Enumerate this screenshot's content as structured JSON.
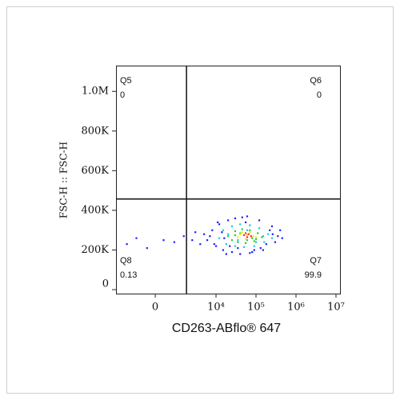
{
  "chart_data": {
    "type": "scatter",
    "xlabel": "CD263-ABflo® 647",
    "ylabel": "FSC-H :: FSC-H",
    "xscale": "biexponential",
    "xlim": [
      -2873,
      12600000
    ],
    "ylim": [
      -20000,
      1130000
    ],
    "xticks": [
      0,
      {
        "value": 10000,
        "label": "10⁴"
      },
      {
        "value": 100000,
        "label": "10⁵"
      },
      {
        "value": 1000000,
        "label": "10⁶"
      },
      {
        "value": 10000000,
        "label": "10⁷"
      }
    ],
    "yticks": [
      0,
      {
        "value": 200000,
        "label": "200K"
      },
      {
        "value": 400000,
        "label": "400K"
      },
      {
        "value": 600000,
        "label": "600K"
      },
      {
        "value": 800000,
        "label": "800K"
      },
      {
        "value": 1000000,
        "label": "1.0M"
      }
    ],
    "gates": {
      "x": 1780,
      "y": 457000
    },
    "quadrants": [
      {
        "name": "Q5",
        "value": 0,
        "corner": "upper-left"
      },
      {
        "name": "Q6",
        "value": 0,
        "corner": "upper-right"
      },
      {
        "name": "Q7",
        "value": 99.9,
        "corner": "lower-right"
      },
      {
        "name": "Q8",
        "value": 0.13,
        "corner": "lower-left"
      }
    ],
    "series": [
      {
        "color": "#1f1fff",
        "x": [
          6000,
          8000,
          9000,
          12000,
          15000,
          20000,
          25000,
          30000,
          40000,
          60000,
          80000,
          120000,
          180000,
          250000,
          350000,
          450000,
          7000,
          10000,
          14000,
          22000,
          35000,
          55000,
          90000,
          150000,
          220000,
          300000,
          11000,
          18000,
          45000,
          130000,
          260000,
          5000,
          16000,
          70000,
          400000,
          -1500,
          -800,
          -300,
          300,
          800,
          1500,
          2500,
          3000,
          4000
        ],
        "y": [
          250000,
          300000,
          230000,
          330000,
          200000,
          350000,
          190000,
          360000,
          180000,
          370000,
          190000,
          350000,
          230000,
          320000,
          270000,
          260000,
          270000,
          220000,
          290000,
          220000,
          210000,
          340000,
          200000,
          200000,
          300000,
          240000,
          340000,
          180000,
          365000,
          210000,
          280000,
          280000,
          260000,
          185000,
          300000,
          230000,
          260000,
          210000,
          250000,
          240000,
          270000,
          250000,
          290000,
          230000
        ]
      },
      {
        "color": "#19c8e6",
        "x": [
          12000,
          15000,
          18000,
          25000,
          30000,
          40000,
          50000,
          70000,
          90000,
          120000,
          160000,
          200000,
          20000,
          35000,
          60000,
          100000,
          150000,
          250000
        ],
        "y": [
          260000,
          300000,
          230000,
          320000,
          220000,
          330000,
          215000,
          325000,
          220000,
          310000,
          240000,
          280000,
          280000,
          250000,
          300000,
          240000,
          270000,
          260000
        ]
      },
      {
        "color": "#28d228",
        "x": [
          20000,
          25000,
          30000,
          35000,
          45000,
          55000,
          70000,
          90000,
          110000,
          140000,
          30000,
          60000,
          80000,
          40000,
          100000
        ],
        "y": [
          270000,
          250000,
          295000,
          240000,
          305000,
          235000,
          300000,
          245000,
          285000,
          265000,
          275000,
          250000,
          260000,
          285000,
          255000
        ]
      },
      {
        "color": "#f0e61e",
        "x": [
          35000,
          45000,
          55000,
          70000,
          85000,
          40000,
          60000,
          100000
        ],
        "y": [
          265000,
          290000,
          255000,
          290000,
          270000,
          280000,
          275000,
          265000
        ]
      },
      {
        "color": "#ff2a1a",
        "x": [
          50000,
          60000,
          65000,
          75000,
          55000
        ],
        "y": [
          275000,
          265000,
          280000,
          270000,
          285000
        ]
      }
    ]
  }
}
